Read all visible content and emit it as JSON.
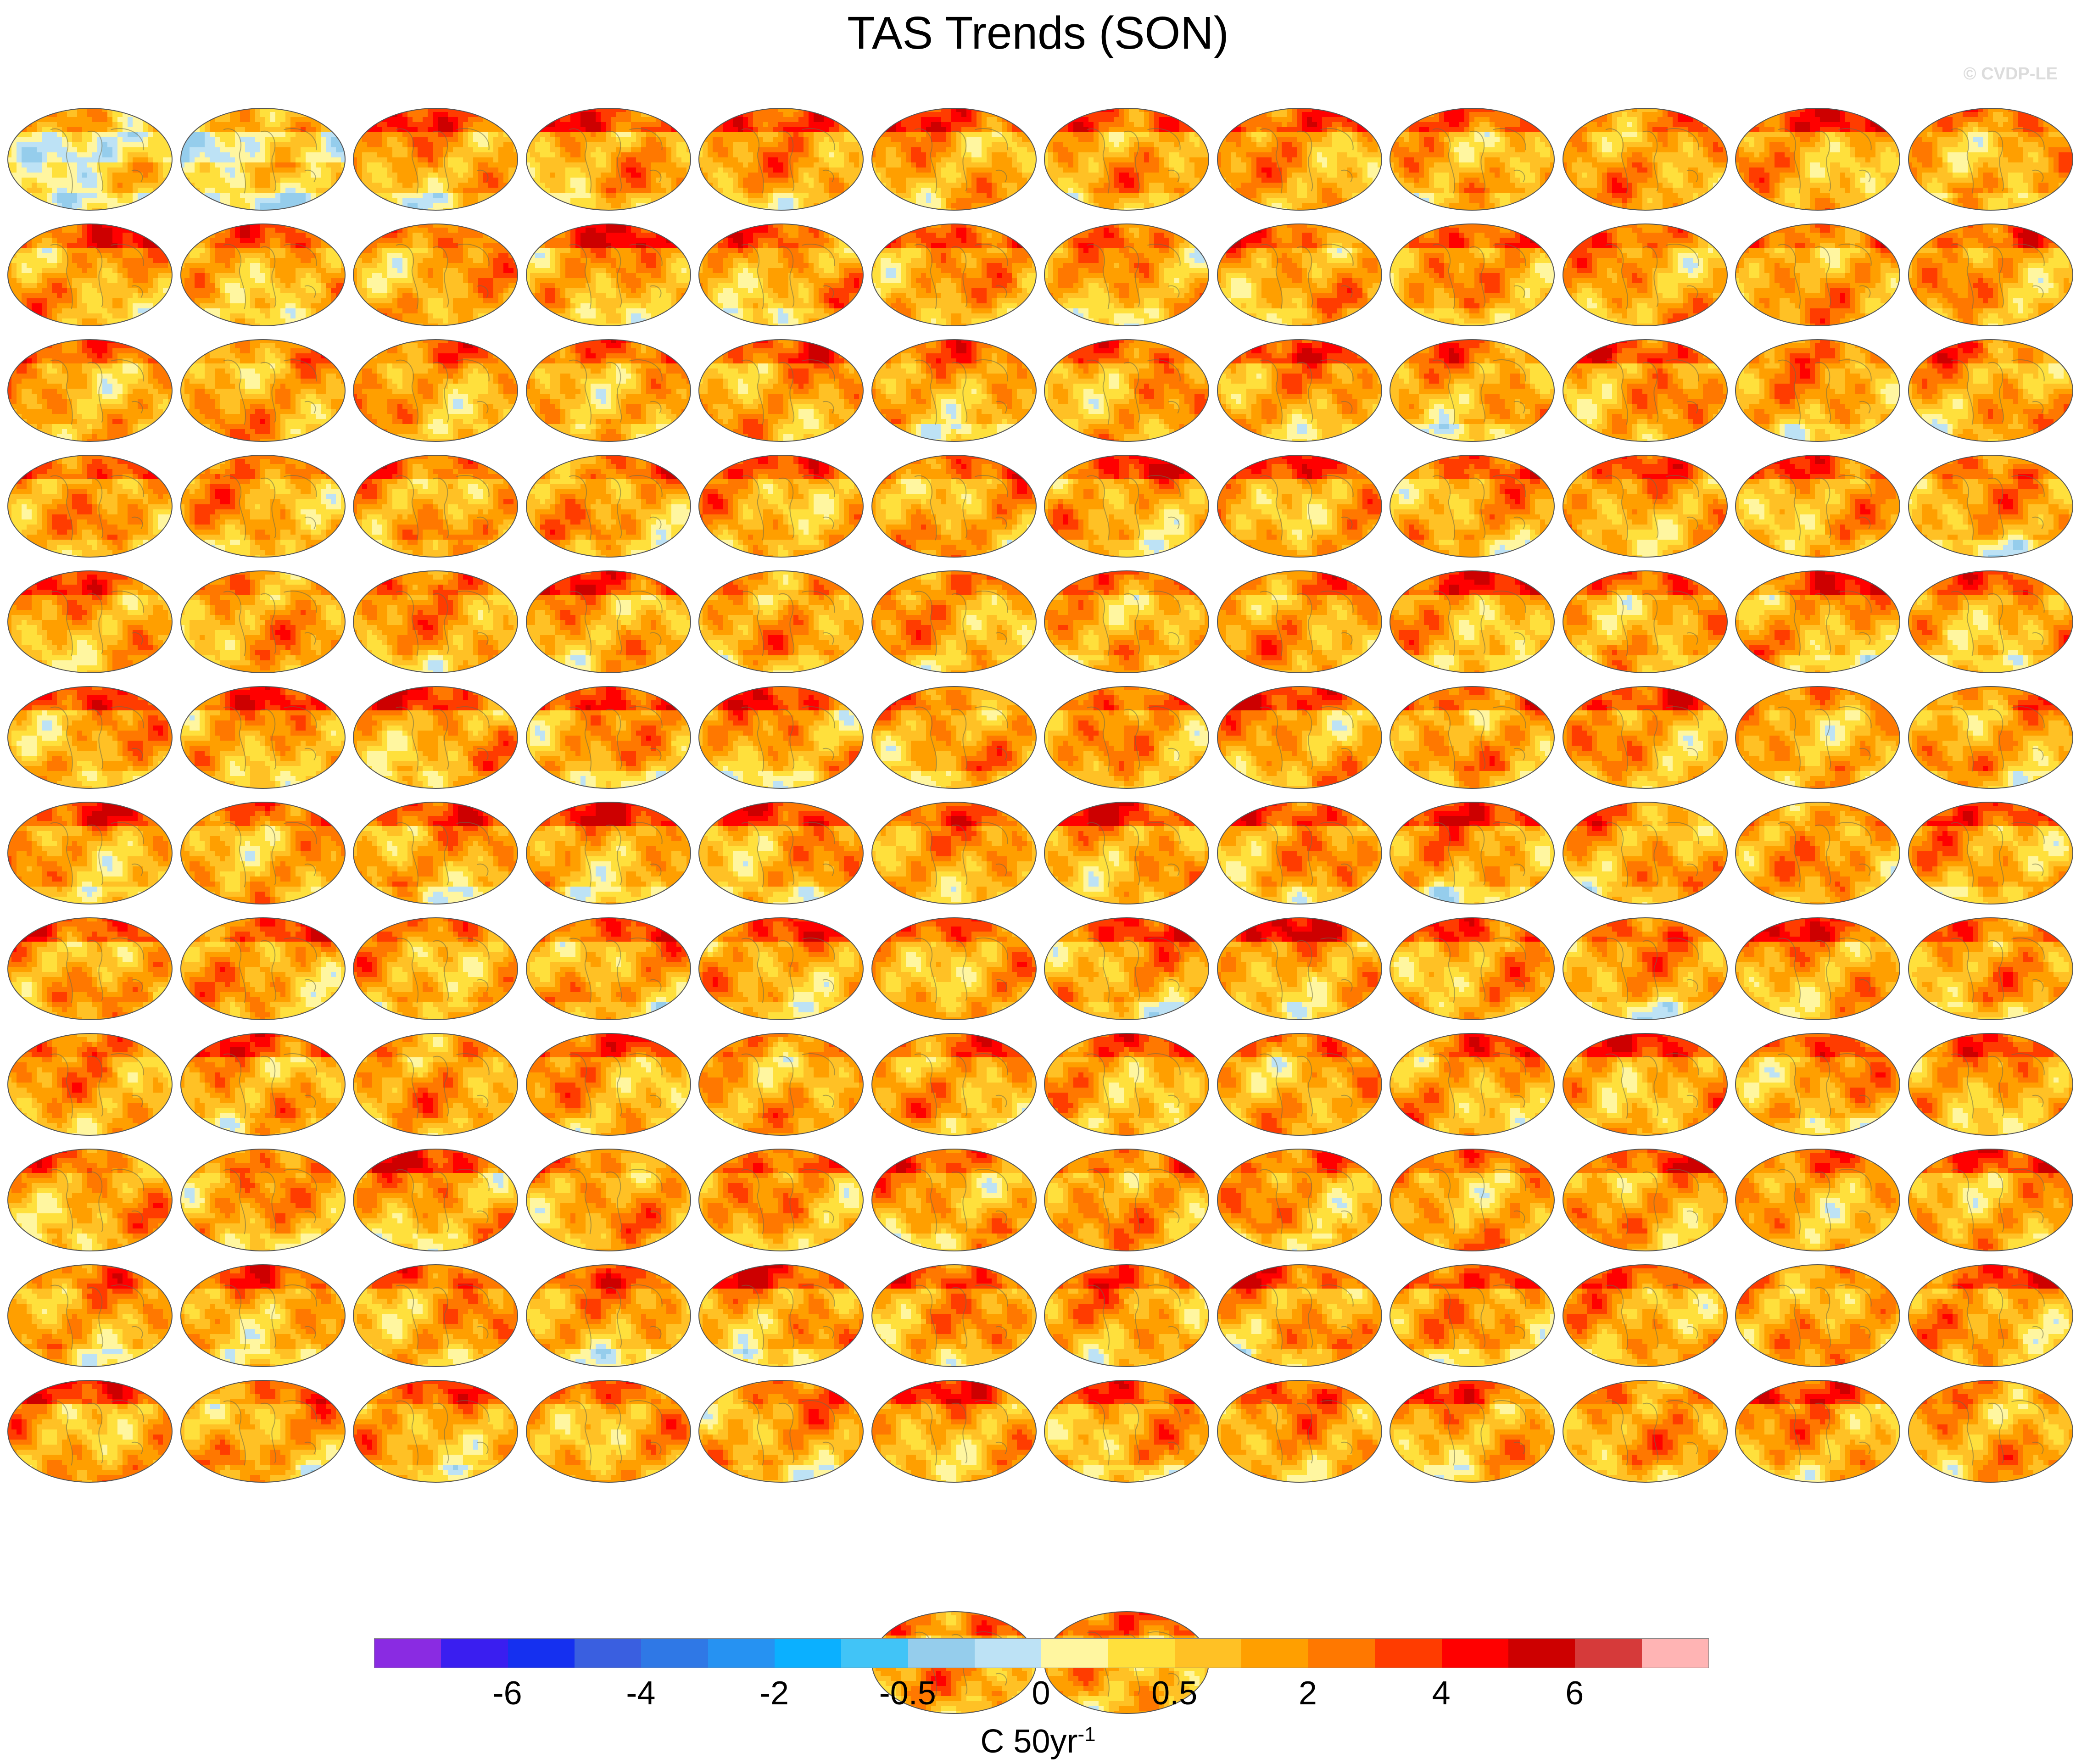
{
  "title": "TAS Trends (SON)",
  "watermark": "© CVDP-LE",
  "grid": {
    "rows": 13,
    "cols": 12,
    "panel_count": 146
  },
  "colorbar": {
    "colors": [
      "#8a2be2",
      "#3a1ef0",
      "#1530f0",
      "#3a5fe0",
      "#2f78e6",
      "#2692f2",
      "#0bb0ff",
      "#41c4f7",
      "#95cdec",
      "#bde2f5",
      "#fff6a0",
      "#ffe03c",
      "#ffc125",
      "#ff9f00",
      "#ff7800",
      "#ff3c00",
      "#ff0000",
      "#cd0000",
      "#d63a3a",
      "#ffb4b4"
    ],
    "tick_labels": [
      "-6",
      "-4",
      "-2",
      "-0.5",
      "0",
      "0.5",
      "2",
      "4",
      "6"
    ],
    "units_base": "C 50yr",
    "units_exponent": "-1"
  }
}
